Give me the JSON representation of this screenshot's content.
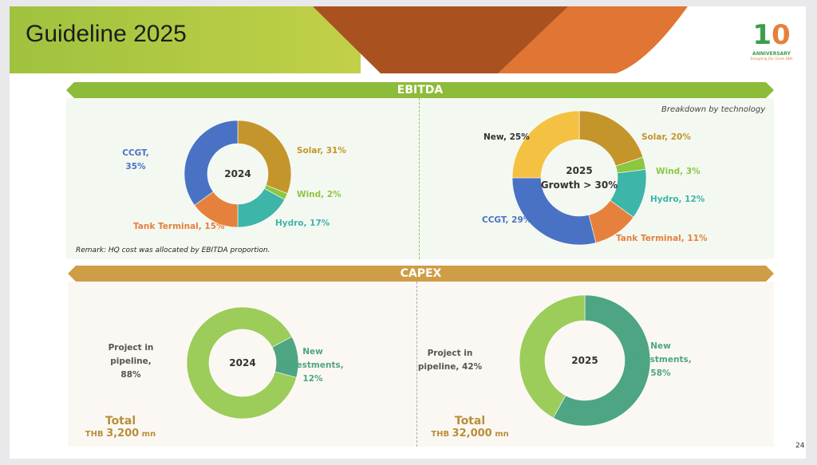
{
  "header": {
    "title": "Guideline 2025",
    "logo_text": "10 ANNIVERSARY Energizing Our Green DNA"
  },
  "sections": {
    "ebitda": "EBITDA",
    "capex": "CAPEX"
  },
  "ebitda": {
    "subtitle": "Breakdown by technology",
    "remark": "Remark: HQ cost was allocated by EBITDA proportion."
  },
  "capex_totals": [
    {
      "label": "Total",
      "currency": "THB",
      "amount": "3,200",
      "unit": "mn"
    },
    {
      "label": "Total",
      "currency": "THB",
      "amount": "32,000",
      "unit": "mn"
    }
  ],
  "page_number": "24",
  "chart_data": [
    {
      "type": "pie",
      "title": "2024",
      "categories": [
        "Solar",
        "Wind",
        "Hydro",
        "Tank Terminal",
        "CCGT"
      ],
      "values": [
        31,
        2,
        17,
        15,
        35
      ],
      "labels": [
        "Solar, 31%",
        "Wind, 2%",
        "Hydro, 17%",
        "Tank Terminal, 15%",
        "CCGT, 35%"
      ],
      "colors": [
        "#c4952b",
        "#8dc63f",
        "#3db5a9",
        "#e5813c",
        "#4a72c4"
      ]
    },
    {
      "type": "pie",
      "title": "2025",
      "subtitle": "Growth > 30%",
      "categories": [
        "Solar",
        "Wind",
        "Hydro",
        "Tank Terminal",
        "CCGT",
        "New"
      ],
      "values": [
        20,
        3,
        12,
        11,
        29,
        25
      ],
      "labels": [
        "Solar, 20%",
        "Wind, 3%",
        "Hydro, 12%",
        "Tank Terminal, 11%",
        "CCGT, 29%",
        "New, 25%"
      ],
      "colors": [
        "#c4952b",
        "#8dc63f",
        "#3db5a9",
        "#e5813c",
        "#4a72c4",
        "#f5c143"
      ]
    },
    {
      "type": "pie",
      "title": "2024",
      "categories": [
        "New Investments",
        "Project in pipeline"
      ],
      "values": [
        12,
        88
      ],
      "labels": [
        "New Investments, 12%",
        "Project in pipeline, 88%"
      ],
      "colors": [
        "#4da583",
        "#9ccc5a"
      ]
    },
    {
      "type": "pie",
      "title": "2025",
      "categories": [
        "New Investments",
        "Project in pipeline"
      ],
      "values": [
        58,
        42
      ],
      "labels": [
        "New Investments, 58%",
        "Project in pipeline, 42%"
      ],
      "colors": [
        "#4da583",
        "#9ccc5a"
      ]
    }
  ]
}
